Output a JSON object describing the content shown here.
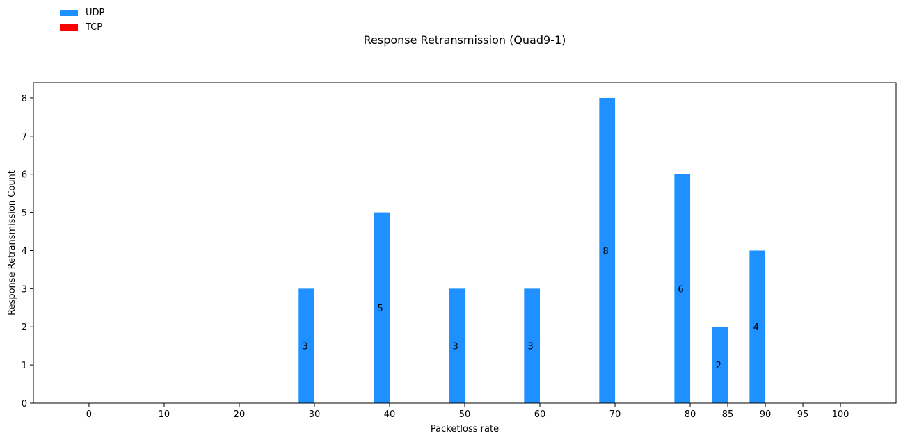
{
  "chart_data": {
    "type": "bar",
    "title": "Response Retransmission (Quad9-1)",
    "xlabel": "Packetloss rate",
    "ylabel": "Response Retransmission Count",
    "categories": [
      "0",
      "10",
      "20",
      "30",
      "40",
      "50",
      "60",
      "70",
      "80",
      "85",
      "90",
      "95",
      "100"
    ],
    "x_values": [
      0,
      10,
      20,
      30,
      40,
      50,
      60,
      70,
      80,
      85,
      90,
      95,
      100
    ],
    "ylim": [
      0,
      8.4
    ],
    "xlim": [
      -7.4,
      107.4
    ],
    "yticks": [
      0,
      1,
      2,
      3,
      4,
      5,
      6,
      7,
      8
    ],
    "grid": false,
    "legend_position": "top-left",
    "series": [
      {
        "name": "UDP",
        "color": "#1e90ff",
        "values": [
          0,
          0,
          0,
          3,
          5,
          3,
          3,
          8,
          6,
          2,
          4,
          0,
          0
        ]
      },
      {
        "name": "TCP",
        "color": "#ff0000",
        "values": [
          0,
          0,
          0,
          0,
          0,
          0,
          0,
          0,
          0,
          0,
          0,
          0,
          0
        ]
      }
    ]
  }
}
